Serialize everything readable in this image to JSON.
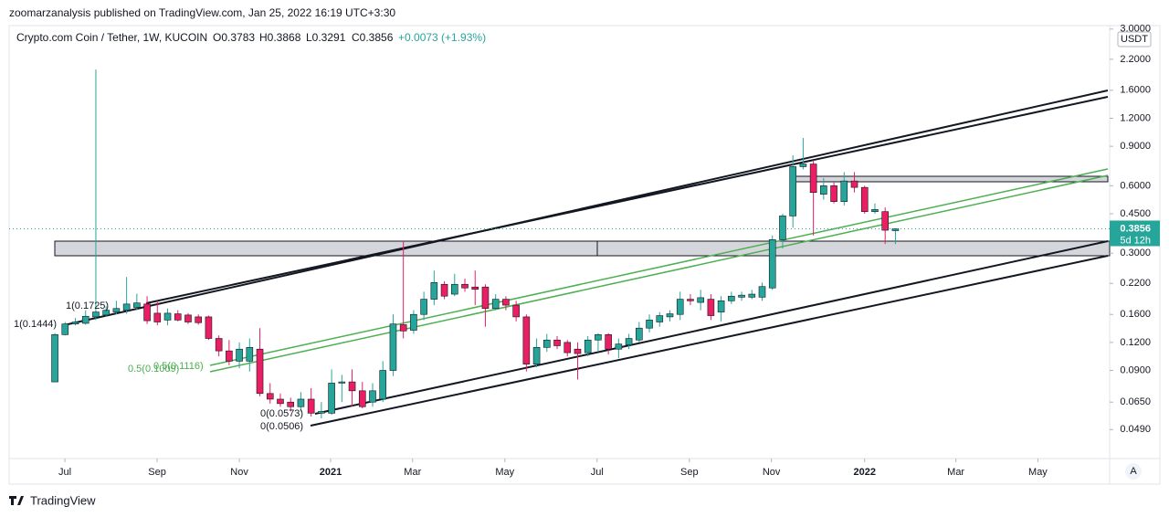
{
  "header": {
    "byline": "zoomarzanalysis published on TradingView.com, Jan 25, 2022 16:19 UTC+3:30"
  },
  "footer": {
    "brand": "TradingView"
  },
  "chart_data": {
    "type": "candlestick",
    "title": "Crypto.com Coin / Tether, 1W, KUCOIN",
    "ohlc_labels": [
      "O0.3783",
      "H0.3868",
      "L0.3291",
      "C0.3856",
      "+0.0073 (+1.93%)"
    ],
    "currency": "USDT",
    "last_price": 0.3856,
    "countdown": "5d 12h",
    "scale_mode": "A",
    "annotations": [
      "1(0.1725)",
      "1(0.1444)",
      "0.5(0.1116)",
      "0.5(0.1009)",
      "0(0.0573)",
      "0(0.0506)"
    ],
    "up_color": "#26a69a",
    "down_color": "#e91e63",
    "log_scale": true,
    "grid": false,
    "open": [
      0.08,
      0.13,
      0.145,
      0.146,
      0.156,
      0.159,
      0.164,
      0.167,
      0.172,
      0.178,
      0.162,
      0.151,
      0.161,
      0.159,
      0.156,
      0.156,
      0.125,
      0.11,
      0.099,
      0.099,
      0.112,
      0.071,
      0.067,
      0.065,
      0.062,
      0.067,
      0.058,
      0.058,
      0.079,
      0.08,
      0.073,
      0.065,
      0.067,
      0.09,
      0.144,
      0.136,
      0.16,
      0.187,
      0.218,
      0.197,
      0.218,
      0.212,
      0.212,
      0.17,
      0.187,
      0.176,
      0.156,
      0.096,
      0.114,
      0.123,
      0.12,
      0.112,
      0.108,
      0.123,
      0.13,
      0.112,
      0.117,
      0.123,
      0.139,
      0.148,
      0.156,
      0.16,
      0.187,
      0.181,
      0.187,
      0.164,
      0.184,
      0.191,
      0.191,
      0.191,
      0.21,
      0.345,
      0.44,
      0.73,
      0.75,
      0.55,
      0.6,
      0.51,
      0.63,
      0.59,
      0.46,
      0.46,
      0.3783
    ],
    "high": [
      0.132,
      0.148,
      0.154,
      0.167,
      1.98,
      0.174,
      0.184,
      0.235,
      0.198,
      0.193,
      0.184,
      0.17,
      0.167,
      0.162,
      0.16,
      0.158,
      0.129,
      0.123,
      0.12,
      0.125,
      0.139,
      0.079,
      0.071,
      0.068,
      0.072,
      0.075,
      0.065,
      0.091,
      0.086,
      0.091,
      0.08,
      0.079,
      0.099,
      0.16,
      0.34,
      0.167,
      0.202,
      0.251,
      0.225,
      0.243,
      0.231,
      0.251,
      0.218,
      0.197,
      0.193,
      0.184,
      0.16,
      0.125,
      0.131,
      0.128,
      0.123,
      0.12,
      0.128,
      0.132,
      0.132,
      0.125,
      0.131,
      0.148,
      0.16,
      0.164,
      0.167,
      0.202,
      0.197,
      0.206,
      0.197,
      0.193,
      0.202,
      0.202,
      0.206,
      0.222,
      0.36,
      0.45,
      0.82,
      0.98,
      0.78,
      0.65,
      0.62,
      0.69,
      0.69,
      0.6,
      0.5,
      0.48,
      0.3868
    ],
    "low": [
      0.08,
      0.129,
      0.143,
      0.144,
      0.151,
      0.157,
      0.16,
      0.161,
      0.167,
      0.145,
      0.143,
      0.143,
      0.149,
      0.145,
      0.144,
      0.123,
      0.104,
      0.095,
      0.092,
      0.089,
      0.069,
      0.064,
      0.062,
      0.059,
      0.059,
      0.056,
      0.055,
      0.057,
      0.065,
      0.062,
      0.061,
      0.062,
      0.065,
      0.085,
      0.125,
      0.131,
      0.151,
      0.176,
      0.187,
      0.193,
      0.202,
      0.176,
      0.141,
      0.167,
      0.167,
      0.149,
      0.089,
      0.093,
      0.109,
      0.112,
      0.104,
      0.082,
      0.104,
      0.109,
      0.106,
      0.102,
      0.112,
      0.12,
      0.133,
      0.141,
      0.149,
      0.151,
      0.176,
      0.167,
      0.151,
      0.149,
      0.178,
      0.184,
      0.187,
      0.184,
      0.206,
      0.315,
      0.39,
      0.71,
      0.36,
      0.52,
      0.5,
      0.49,
      0.56,
      0.45,
      0.45,
      0.33,
      0.3291
    ],
    "close": [
      0.13,
      0.145,
      0.148,
      0.157,
      0.164,
      0.167,
      0.17,
      0.178,
      0.18,
      0.15,
      0.148,
      0.162,
      0.151,
      0.148,
      0.147,
      0.125,
      0.11,
      0.099,
      0.112,
      0.114,
      0.071,
      0.067,
      0.064,
      0.062,
      0.067,
      0.058,
      0.059,
      0.079,
      0.08,
      0.073,
      0.062,
      0.073,
      0.09,
      0.145,
      0.135,
      0.16,
      0.187,
      0.222,
      0.193,
      0.218,
      0.21,
      0.207,
      0.17,
      0.187,
      0.176,
      0.156,
      0.096,
      0.114,
      0.123,
      0.116,
      0.108,
      0.107,
      0.123,
      0.13,
      0.112,
      0.118,
      0.125,
      0.139,
      0.151,
      0.158,
      0.161,
      0.187,
      0.184,
      0.19,
      0.158,
      0.184,
      0.193,
      0.195,
      0.197,
      0.213,
      0.345,
      0.44,
      0.73,
      0.75,
      0.56,
      0.6,
      0.51,
      0.63,
      0.59,
      0.46,
      0.47,
      0.38,
      0.3856
    ],
    "xlim": [
      -4.46,
      102.9
    ],
    "xticks": [
      {
        "value": 0.98,
        "label": "Jul"
      },
      {
        "value": 9.98,
        "label": "Sep"
      },
      {
        "value": 18.0,
        "label": "Nov"
      },
      {
        "value": 26.9,
        "label": "2021"
      },
      {
        "value": 34.9,
        "label": "Mar"
      },
      {
        "value": 43.9,
        "label": "May"
      },
      {
        "value": 52.9,
        "label": "Jul"
      },
      {
        "value": 61.9,
        "label": "Sep"
      },
      {
        "value": 69.9,
        "label": "Nov"
      },
      {
        "value": 79.0,
        "label": "2022"
      },
      {
        "value": 87.9,
        "label": "Mar"
      },
      {
        "value": 95.9,
        "label": "May"
      }
    ],
    "ylim": [
      0.0364,
      3.11
    ],
    "yticks": [
      {
        "value": 3,
        "label": "3.0000"
      },
      {
        "value": 2.2,
        "label": "2.2000"
      },
      {
        "value": 1.6,
        "label": "1.6000"
      },
      {
        "value": 1.2,
        "label": "1.2000"
      },
      {
        "value": 0.9,
        "label": "0.9000"
      },
      {
        "value": 0.6,
        "label": "0.6000"
      },
      {
        "value": 0.45,
        "label": "0.4500"
      },
      {
        "value": 0.3,
        "label": "0.3000"
      },
      {
        "value": 0.22,
        "label": "0.2200"
      },
      {
        "value": 0.16,
        "label": "0.1600"
      },
      {
        "value": 0.12,
        "label": "0.1200"
      },
      {
        "value": 0.09,
        "label": "0.0900"
      },
      {
        "value": 0.065,
        "label": "0.0650"
      },
      {
        "value": 0.049,
        "label": "0.0490"
      }
    ]
  }
}
